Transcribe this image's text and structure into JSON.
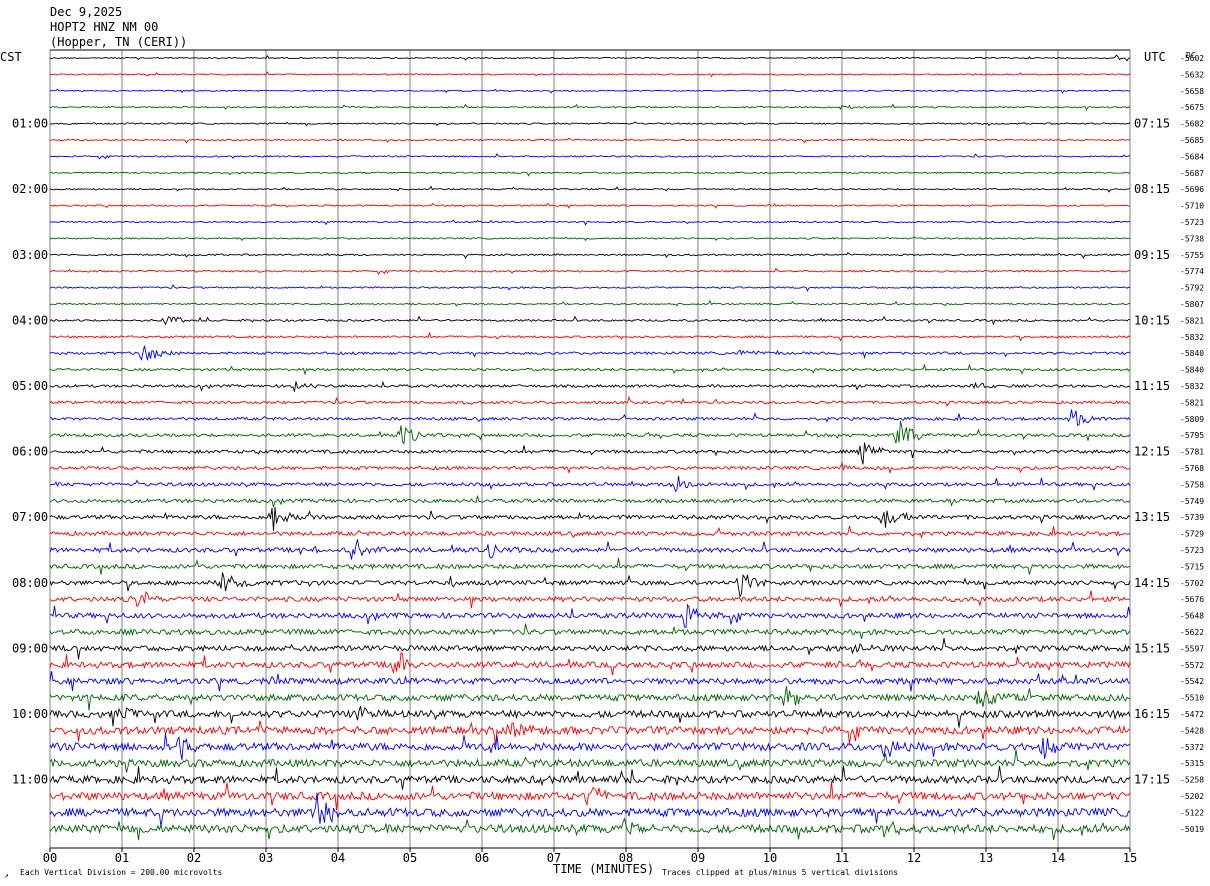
{
  "header": {
    "date": "Dec 9,2025",
    "station": "HOPT2 HNZ NM 00",
    "location": "(Hopper, TN (CERI))"
  },
  "left_tz": "CST",
  "right_tz": "UTC",
  "dc_label": "DC",
  "footer": {
    "scale": "Each Vertical Division =  200.00 microvolts",
    "xlabel": "TIME (MINUTES)",
    "clip": "Traces clipped at plus/minus 5 vertical divisions"
  },
  "colors": {
    "cycle": [
      "#000000",
      "#ff0000",
      "#0000ff",
      "#006400"
    ],
    "grid": "#808080"
  },
  "chart_data": {
    "type": "line",
    "title": "Dec 9,2025",
    "xlabel": "TIME (MINUTES)",
    "xlim": [
      0,
      15
    ],
    "x_ticks": [
      "00",
      "01",
      "02",
      "03",
      "04",
      "05",
      "06",
      "07",
      "08",
      "09",
      "10",
      "11",
      "12",
      "13",
      "14",
      "15"
    ],
    "left_hour_labels": [
      "01:00",
      "02:00",
      "03:00",
      "04:00",
      "05:00",
      "06:00",
      "07:00",
      "08:00",
      "09:00",
      "10:00",
      "11:00"
    ],
    "right_hour_labels": [
      "07:15",
      "08:15",
      "09:15",
      "10:15",
      "11:15",
      "12:15",
      "13:15",
      "14:15",
      "15:15",
      "16:15",
      "17:15"
    ],
    "dc_offsets": [
      "-5602",
      "-5632",
      "-5658",
      "-5675",
      "-5682",
      "-5685",
      "-5684",
      "-5687",
      "-5696",
      "-5710",
      "-5723",
      "-5738",
      "-5755",
      "-5774",
      "-5792",
      "-5807",
      "-5821",
      "-5832",
      "-5840",
      "-5840",
      "-5832",
      "-5821",
      "-5809",
      "-5795",
      "-5781",
      "-5768",
      "-5758",
      "-5749",
      "-5739",
      "-5729",
      "-5723",
      "-5715",
      "-5702",
      "-5676",
      "-5648",
      "-5622",
      "-5597",
      "-5572",
      "-5542",
      "-5510",
      "-5472",
      "-5428",
      "-5372",
      "-5315",
      "-5258",
      "-5202",
      "-5122",
      "-5019"
    ],
    "trace_noise": [
      0.6,
      0.6,
      0.6,
      0.7,
      0.7,
      0.7,
      0.7,
      0.7,
      0.7,
      0.7,
      0.7,
      0.7,
      0.8,
      0.8,
      0.8,
      0.8,
      1.0,
      1.0,
      1.2,
      1.2,
      1.3,
      1.3,
      1.4,
      1.5,
      1.6,
      1.6,
      1.7,
      1.8,
      2.0,
      2.0,
      2.2,
      2.2,
      2.2,
      2.4,
      2.5,
      2.6,
      2.7,
      2.8,
      3.0,
      3.2,
      3.4,
      3.8,
      3.8,
      3.6,
      3.6,
      3.8,
      4.0,
      4.0
    ],
    "events": [
      {
        "trace": 0,
        "minute": 14.8,
        "amp": 3
      },
      {
        "trace": 3,
        "minute": 11.0,
        "amp": 4
      },
      {
        "trace": 16,
        "minute": 1.6,
        "amp": 8
      },
      {
        "trace": 18,
        "minute": 1.3,
        "amp": 12
      },
      {
        "trace": 18,
        "minute": 9.6,
        "amp": 5
      },
      {
        "trace": 20,
        "minute": 3.4,
        "amp": 5
      },
      {
        "trace": 20,
        "minute": 12.8,
        "amp": 4
      },
      {
        "trace": 21,
        "minute": 5.7,
        "amp": 3
      },
      {
        "trace": 22,
        "minute": 14.2,
        "amp": 12
      },
      {
        "trace": 23,
        "minute": 4.9,
        "amp": 12
      },
      {
        "trace": 23,
        "minute": 11.8,
        "amp": 18
      },
      {
        "trace": 24,
        "minute": 11.3,
        "amp": 14
      },
      {
        "trace": 25,
        "minute": 11.0,
        "amp": 5
      },
      {
        "trace": 26,
        "minute": 8.7,
        "amp": 10
      },
      {
        "trace": 28,
        "minute": 3.1,
        "amp": 14
      },
      {
        "trace": 28,
        "minute": 11.6,
        "amp": 16
      },
      {
        "trace": 30,
        "minute": 4.2,
        "amp": 16
      },
      {
        "trace": 30,
        "minute": 6.1,
        "amp": 8
      },
      {
        "trace": 30,
        "minute": 3.5,
        "amp": 8
      },
      {
        "trace": 32,
        "minute": 2.4,
        "amp": 14
      },
      {
        "trace": 32,
        "minute": 9.6,
        "amp": 16
      },
      {
        "trace": 33,
        "minute": 1.2,
        "amp": 12
      },
      {
        "trace": 34,
        "minute": 8.8,
        "amp": 18
      },
      {
        "trace": 36,
        "minute": 11.1,
        "amp": 8
      },
      {
        "trace": 37,
        "minute": 4.8,
        "amp": 18
      },
      {
        "trace": 39,
        "minute": 10.2,
        "amp": 14
      },
      {
        "trace": 39,
        "minute": 12.9,
        "amp": 12
      },
      {
        "trace": 40,
        "minute": 1.0,
        "amp": 10
      },
      {
        "trace": 40,
        "minute": 4.3,
        "amp": 12
      },
      {
        "trace": 41,
        "minute": 6.4,
        "amp": 10
      },
      {
        "trace": 42,
        "minute": 1.8,
        "amp": 14
      },
      {
        "trace": 42,
        "minute": 11.6,
        "amp": 12
      },
      {
        "trace": 42,
        "minute": 13.8,
        "amp": 14
      },
      {
        "trace": 45,
        "minute": 7.5,
        "amp": 12
      },
      {
        "trace": 46,
        "minute": 3.7,
        "amp": 22
      },
      {
        "trace": 47,
        "minute": 8.0,
        "amp": 14
      },
      {
        "trace": 47,
        "minute": 11.6,
        "amp": 8
      }
    ]
  }
}
